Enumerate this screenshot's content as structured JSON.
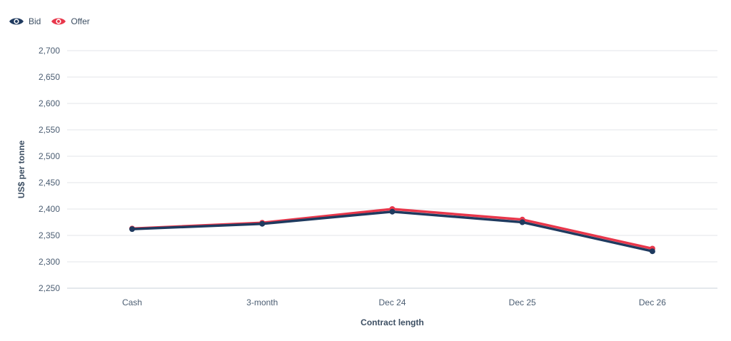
{
  "legend": {
    "items": [
      {
        "label": "Bid",
        "icon": "eye-icon",
        "color": "#1f3a5f"
      },
      {
        "label": "Offer",
        "icon": "eye-icon",
        "color": "#e8374b"
      }
    ]
  },
  "chart_data": {
    "type": "line",
    "categories": [
      "Cash",
      "3-month",
      "Dec 24",
      "Dec 25",
      "Dec 26"
    ],
    "series": [
      {
        "name": "Bid",
        "color": "#1f3a5f",
        "values": [
          2362,
          2372,
          2395,
          2375,
          2320
        ]
      },
      {
        "name": "Offer",
        "color": "#e8374b",
        "values": [
          2363,
          2374,
          2400,
          2380,
          2325
        ]
      }
    ],
    "title": "",
    "xlabel": "Contract length",
    "ylabel": "US$ per tonne",
    "ylim": [
      2250,
      2700
    ],
    "yticks": [
      "2,250",
      "2,300",
      "2,350",
      "2,400",
      "2,450",
      "2,500",
      "2,550",
      "2,600",
      "2,650",
      "2,700"
    ],
    "grid": true,
    "legend_position": "top-left"
  }
}
